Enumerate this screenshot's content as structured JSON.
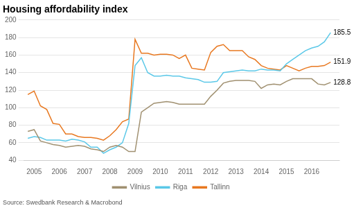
{
  "chart_data": {
    "type": "line",
    "title": "Housing affordability index",
    "source": "Source: Swedbank Research & Macrobond",
    "series": [
      {
        "name": "Vilnius",
        "color": "#a09070",
        "x": [
          2004.75,
          2005.0,
          2005.25,
          2005.5,
          2005.75,
          2006.0,
          2006.25,
          2006.5,
          2006.75,
          2007.0,
          2007.25,
          2007.5,
          2007.75,
          2008.0,
          2008.25,
          2008.5,
          2008.75,
          2009.0,
          2009.25,
          2009.5,
          2009.75,
          2010.0,
          2010.25,
          2010.5,
          2010.75,
          2011.0,
          2011.25,
          2011.5,
          2011.75,
          2012.0,
          2012.25,
          2012.5,
          2012.75,
          2013.0,
          2013.25,
          2013.5,
          2013.75,
          2014.0,
          2014.25,
          2014.5,
          2014.75,
          2015.0,
          2015.25,
          2015.5,
          2015.75,
          2016.0,
          2016.25,
          2016.5,
          2016.75
        ],
        "values": [
          73,
          75,
          62,
          60,
          58,
          57,
          55,
          56,
          57,
          56,
          53,
          52,
          50,
          55,
          57,
          55,
          50,
          50,
          95,
          100,
          105,
          106,
          107,
          106,
          104,
          104,
          104,
          104,
          104,
          113,
          120,
          128,
          130,
          131,
          131,
          131,
          130,
          122,
          126,
          127,
          126,
          130,
          133,
          133,
          133,
          133,
          127,
          126,
          128.8
        ]
      },
      {
        "name": "Riga",
        "color": "#5bc8e8",
        "x": [
          2004.75,
          2005.0,
          2005.25,
          2005.5,
          2005.75,
          2006.0,
          2006.25,
          2006.5,
          2006.75,
          2007.0,
          2007.25,
          2007.5,
          2007.75,
          2008.0,
          2008.25,
          2008.5,
          2008.75,
          2009.0,
          2009.25,
          2009.5,
          2009.75,
          2010.0,
          2010.25,
          2010.5,
          2010.75,
          2011.0,
          2011.25,
          2011.5,
          2011.75,
          2012.0,
          2012.25,
          2012.5,
          2012.75,
          2013.0,
          2013.25,
          2013.5,
          2013.75,
          2014.0,
          2014.25,
          2014.5,
          2014.75,
          2015.0,
          2015.25,
          2015.5,
          2015.75,
          2016.0,
          2016.25,
          2016.5,
          2016.75
        ],
        "values": [
          65,
          67,
          66,
          63,
          63,
          63,
          62,
          64,
          63,
          61,
          55,
          55,
          48,
          52,
          55,
          60,
          82,
          148,
          157,
          140,
          136,
          136,
          137,
          136,
          136,
          134,
          133,
          132,
          129,
          129,
          130,
          140,
          141,
          142,
          143,
          142,
          142,
          144,
          143,
          143,
          142,
          150,
          155,
          160,
          165,
          168,
          170,
          175,
          185.5
        ]
      },
      {
        "name": "Tallinn",
        "color": "#e87820",
        "x": [
          2004.75,
          2005.0,
          2005.25,
          2005.5,
          2005.75,
          2006.0,
          2006.25,
          2006.5,
          2006.75,
          2007.0,
          2007.25,
          2007.5,
          2007.75,
          2008.0,
          2008.25,
          2008.5,
          2008.75,
          2009.0,
          2009.25,
          2009.5,
          2009.75,
          2010.0,
          2010.25,
          2010.5,
          2010.75,
          2011.0,
          2011.25,
          2011.5,
          2011.75,
          2012.0,
          2012.25,
          2012.5,
          2012.75,
          2013.0,
          2013.25,
          2013.5,
          2013.75,
          2014.0,
          2014.25,
          2014.5,
          2014.75,
          2015.0,
          2015.25,
          2015.5,
          2015.75,
          2016.0,
          2016.25,
          2016.5,
          2016.75
        ],
        "values": [
          115,
          119,
          102,
          98,
          82,
          81,
          70,
          70,
          67,
          66,
          66,
          65,
          63,
          68,
          75,
          84,
          87,
          178,
          162,
          162,
          160,
          161,
          161,
          160,
          156,
          160,
          145,
          144,
          143,
          163,
          170,
          172,
          165,
          165,
          165,
          158,
          155,
          148,
          145,
          144,
          143,
          148,
          145,
          142,
          145,
          147,
          147,
          148,
          151.9
        ]
      }
    ],
    "annotations": [
      {
        "text": "185.5",
        "x": 2016.75,
        "y": 185.5
      },
      {
        "text": "151.9",
        "x": 2016.75,
        "y": 151.9
      },
      {
        "text": "128.8",
        "x": 2016.75,
        "y": 128.8
      }
    ],
    "xlim": [
      2004.6,
      2017.1
    ],
    "xticks": [
      2005,
      2006,
      2007,
      2008,
      2009,
      2010,
      2011,
      2012,
      2013,
      2014,
      2015,
      2016
    ],
    "ylim": [
      40,
      200
    ],
    "yticks": [
      40,
      60,
      80,
      100,
      120,
      140,
      160,
      180,
      200
    ],
    "grid": "y",
    "legend": "bottom"
  }
}
